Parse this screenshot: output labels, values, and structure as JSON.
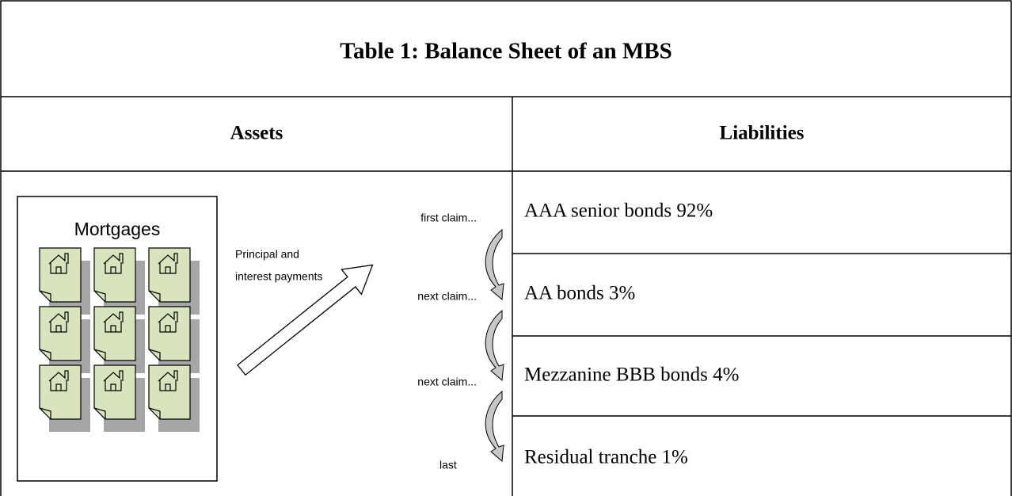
{
  "title": "Table 1: Balance Sheet of an MBS",
  "headers": [
    "Assets",
    "Liabilities"
  ],
  "assets": {
    "box_label": "Mortgages",
    "payments_label": [
      "Principal and",
      "interest payments"
    ],
    "claims": [
      "first claim...",
      "next claim...",
      "next claim...",
      "last"
    ]
  },
  "liabilities": [
    "AAA senior bonds  92%",
    "AA bonds  3%",
    "Mezzanine BBB bonds  4%",
    "Residual tranche 1%"
  ]
}
